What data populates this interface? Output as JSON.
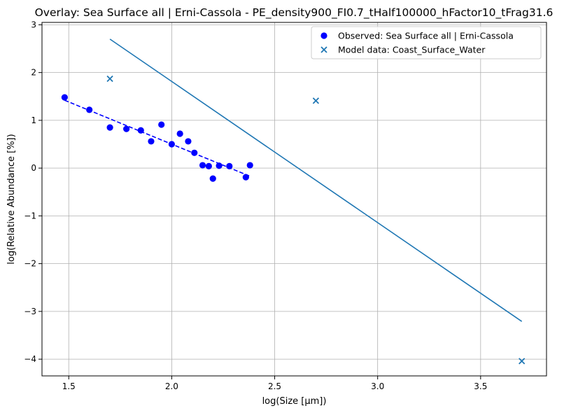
{
  "chart_data": {
    "type": "scatter",
    "title": "Overlay: Sea Surface all | Erni-Cassola - PE_density900_FI0.7_tHalf100000_hFactor10_tFrag31.6",
    "xlabel": "log(Size [μm])",
    "ylabel": "log(Relative Abundance [%])",
    "xlim": [
      1.37,
      3.82
    ],
    "ylim": [
      -4.35,
      3.05
    ],
    "xticks": [
      1.5,
      2.0,
      2.5,
      3.0,
      3.5
    ],
    "xtick_labels": [
      "1.5",
      "2.0",
      "2.5",
      "3.0",
      "3.5"
    ],
    "yticks": [
      -4,
      -3,
      -2,
      -1,
      0,
      1,
      2,
      3
    ],
    "ytick_labels": [
      "−4",
      "−3",
      "−2",
      "−1",
      "0",
      "1",
      "2",
      "3"
    ],
    "grid": true,
    "legend_position": "top-right",
    "series": [
      {
        "name": "Observed: Sea Surface all | Erni-Cassola",
        "kind": "scatter",
        "marker": "circle",
        "color": "#0000ff",
        "points": [
          [
            1.48,
            1.48
          ],
          [
            1.6,
            1.22
          ],
          [
            1.7,
            0.85
          ],
          [
            1.78,
            0.82
          ],
          [
            1.85,
            0.79
          ],
          [
            1.9,
            0.56
          ],
          [
            1.95,
            0.91
          ],
          [
            2.0,
            0.5
          ],
          [
            2.04,
            0.72
          ],
          [
            2.08,
            0.56
          ],
          [
            2.11,
            0.32
          ],
          [
            2.15,
            0.06
          ],
          [
            2.18,
            0.04
          ],
          [
            2.2,
            -0.22
          ],
          [
            2.23,
            0.05
          ],
          [
            2.28,
            0.04
          ],
          [
            2.36,
            -0.19
          ],
          [
            2.38,
            0.06
          ]
        ]
      },
      {
        "name": "Observed fit",
        "kind": "line",
        "dash": "dashed",
        "color": "#0000ff",
        "points": [
          [
            1.48,
            1.42
          ],
          [
            2.38,
            -0.17
          ]
        ]
      },
      {
        "name": "Model data: Coast_Surface_Water",
        "kind": "scatter",
        "marker": "x",
        "color": "#1f77b4",
        "points": [
          [
            1.7,
            1.87
          ],
          [
            2.7,
            1.41
          ],
          [
            3.7,
            -4.04
          ]
        ]
      },
      {
        "name": "Model fit",
        "kind": "line",
        "dash": "solid",
        "color": "#1f77b4",
        "points": [
          [
            1.7,
            2.7
          ],
          [
            3.7,
            -3.21
          ]
        ]
      }
    ],
    "legend": [
      {
        "label": "Observed: Sea Surface all | Erni-Cassola",
        "marker": "circle",
        "color": "#0000ff"
      },
      {
        "label": "Model data: Coast_Surface_Water",
        "marker": "x",
        "color": "#1f77b4"
      }
    ]
  }
}
